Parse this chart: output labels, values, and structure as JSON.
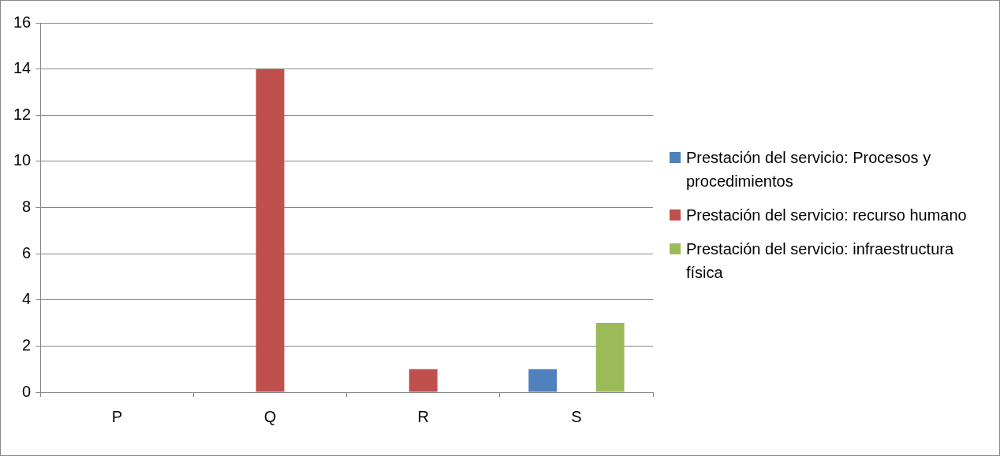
{
  "chart_data": {
    "type": "bar",
    "categories": [
      "P",
      "Q",
      "R",
      "S"
    ],
    "series": [
      {
        "name": "Prestación del servicio: Procesos y procedimientos",
        "color": "#4f81bd",
        "values": [
          0,
          0,
          0,
          1
        ]
      },
      {
        "name": "Prestación del servicio: recurso humano",
        "color": "#c0504d",
        "values": [
          0,
          14,
          1,
          0
        ]
      },
      {
        "name": "Prestación del servicio: infraestructura física",
        "color": "#9bbb59",
        "values": [
          0,
          0,
          0,
          3
        ]
      }
    ],
    "ylim": [
      0,
      16
    ],
    "yticks": [
      0,
      2,
      4,
      6,
      8,
      10,
      12,
      14,
      16
    ],
    "grid": "y",
    "legend": "right"
  }
}
